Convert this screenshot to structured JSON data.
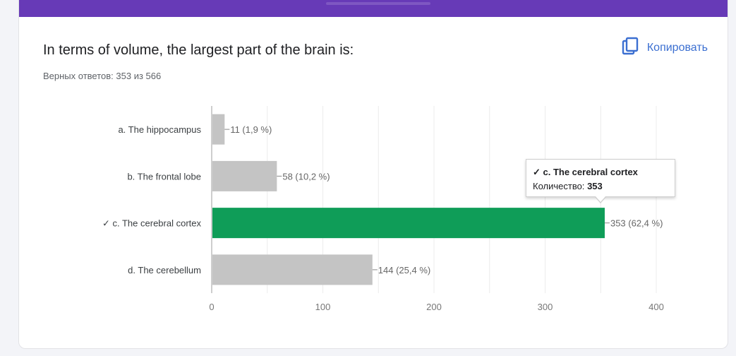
{
  "question": {
    "title": "In terms of volume, the largest part of the brain is:",
    "score": "Верных ответов: 353 из 566",
    "copy_label": "Копировать"
  },
  "colors": {
    "header": "#673ab7",
    "correct": "#0f9d58",
    "bar": "#c4c4c4",
    "link": "#3b6fd1"
  },
  "icons": {
    "copy": "copy-icon"
  },
  "chart_data": {
    "type": "bar",
    "orientation": "horizontal",
    "categories": [
      "a. The hippocampus",
      "b. The frontal lobe",
      "✓ c. The cerebral cortex",
      "d. The cerebellum"
    ],
    "values": [
      11,
      58,
      353,
      144
    ],
    "labels": [
      "11 (1,9 %)",
      "58 (10,2 %)",
      "353 (62,4 %)",
      "144 (25,4 %)"
    ],
    "correct_index": 2,
    "xlim": [
      0,
      400
    ],
    "xticks": [
      0,
      100,
      200,
      300,
      400
    ],
    "grid": true,
    "tooltip": {
      "title": "✓ c. The cerebral cortex",
      "count_label": "Количество:",
      "count_value": "353"
    }
  }
}
